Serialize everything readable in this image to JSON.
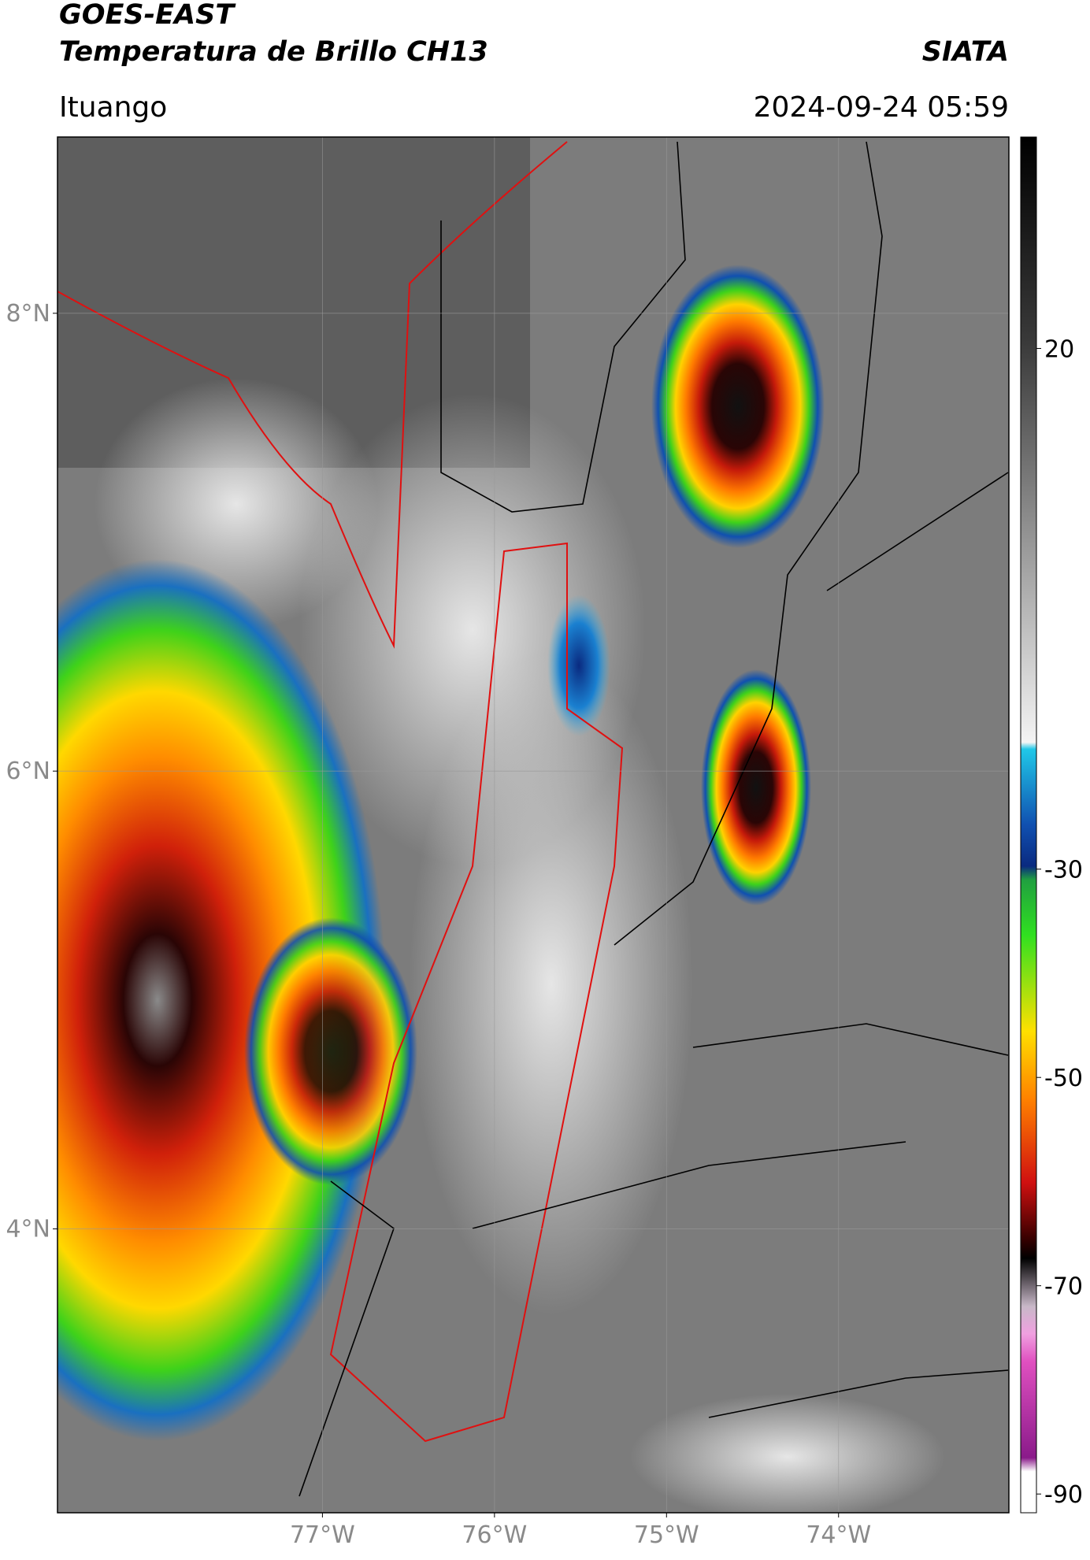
{
  "header": {
    "title": "GOES-EAST",
    "subtitle": "Temperatura de Brillo CH13",
    "source": "SIATA",
    "location": "Ituango",
    "timestamp": "2024-09-24 05:59"
  },
  "map": {
    "lat_lim": [
      2.76,
      8.77
    ],
    "lon_lim": [
      -78.54,
      -73.01
    ],
    "grid": true,
    "lat_ticks": [
      {
        "value": 8,
        "label": "8°N"
      },
      {
        "value": 6,
        "label": "6°N"
      },
      {
        "value": 4,
        "label": "4°N"
      }
    ],
    "lon_ticks": [
      {
        "value": -77,
        "label": "77°W"
      },
      {
        "value": -76,
        "label": "76°W"
      },
      {
        "value": -75,
        "label": "75°W"
      },
      {
        "value": -74,
        "label": "74°W"
      }
    ]
  },
  "colorbar": {
    "clim": [
      -91.8,
      40.3
    ],
    "ticks": [
      20,
      -30,
      -50,
      -70,
      -90
    ]
  }
}
